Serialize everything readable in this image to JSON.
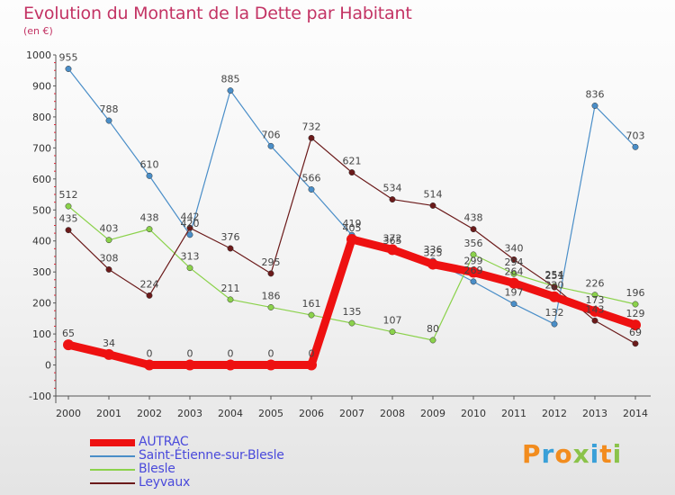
{
  "header": {
    "title": "Evolution du Montant de la Dette par Habitant",
    "subtitle": "(en €)"
  },
  "brand": {
    "text": "Proxiti",
    "letters": [
      "P",
      "r",
      "o",
      "x",
      "i",
      "t",
      "i"
    ],
    "colors": [
      "#f28c1e",
      "#3aa0d8",
      "#f28c1e",
      "#8bc34a",
      "#3aa0d8",
      "#f28c1e",
      "#8bc34a"
    ]
  },
  "chart_data": {
    "type": "line",
    "title": "Evolution du Montant de la Dette par Habitant",
    "subtitle": "(en €)",
    "xlabel": "",
    "ylabel": "",
    "x": [
      2000,
      2001,
      2002,
      2003,
      2004,
      2005,
      2006,
      2007,
      2008,
      2009,
      2010,
      2011,
      2012,
      2013,
      2014
    ],
    "ylim": [
      -100,
      1000
    ],
    "yticks": [
      -100,
      0,
      100,
      200,
      300,
      400,
      500,
      600,
      700,
      800,
      900,
      1000
    ],
    "grid": false,
    "legend_position": "bottom-left",
    "series": [
      {
        "name": "AUTRAC",
        "color": "#ee1111",
        "width": 9,
        "values": [
          65,
          34,
          0,
          0,
          0,
          0,
          0,
          405,
          372,
          325,
          299,
          264,
          220,
          173,
          129
        ]
      },
      {
        "name": "Saint-Étienne-sur-Blesle",
        "color": "#4a8ec8",
        "width": 1.2,
        "values": [
          955,
          788,
          610,
          420,
          885,
          706,
          566,
          419,
          365,
          336,
          269,
          197,
          132,
          836,
          703
        ]
      },
      {
        "name": "Blesle",
        "color": "#8bd24b",
        "width": 1.2,
        "values": [
          512,
          403,
          438,
          313,
          211,
          186,
          161,
          135,
          107,
          80,
          356,
          294,
          254,
          226,
          196
        ]
      },
      {
        "name": "Leyvaux",
        "color": "#6b1a1a",
        "width": 1.2,
        "values": [
          435,
          308,
          224,
          442,
          376,
          295,
          732,
          621,
          534,
          514,
          438,
          340,
          251,
          143,
          69
        ]
      }
    ]
  }
}
